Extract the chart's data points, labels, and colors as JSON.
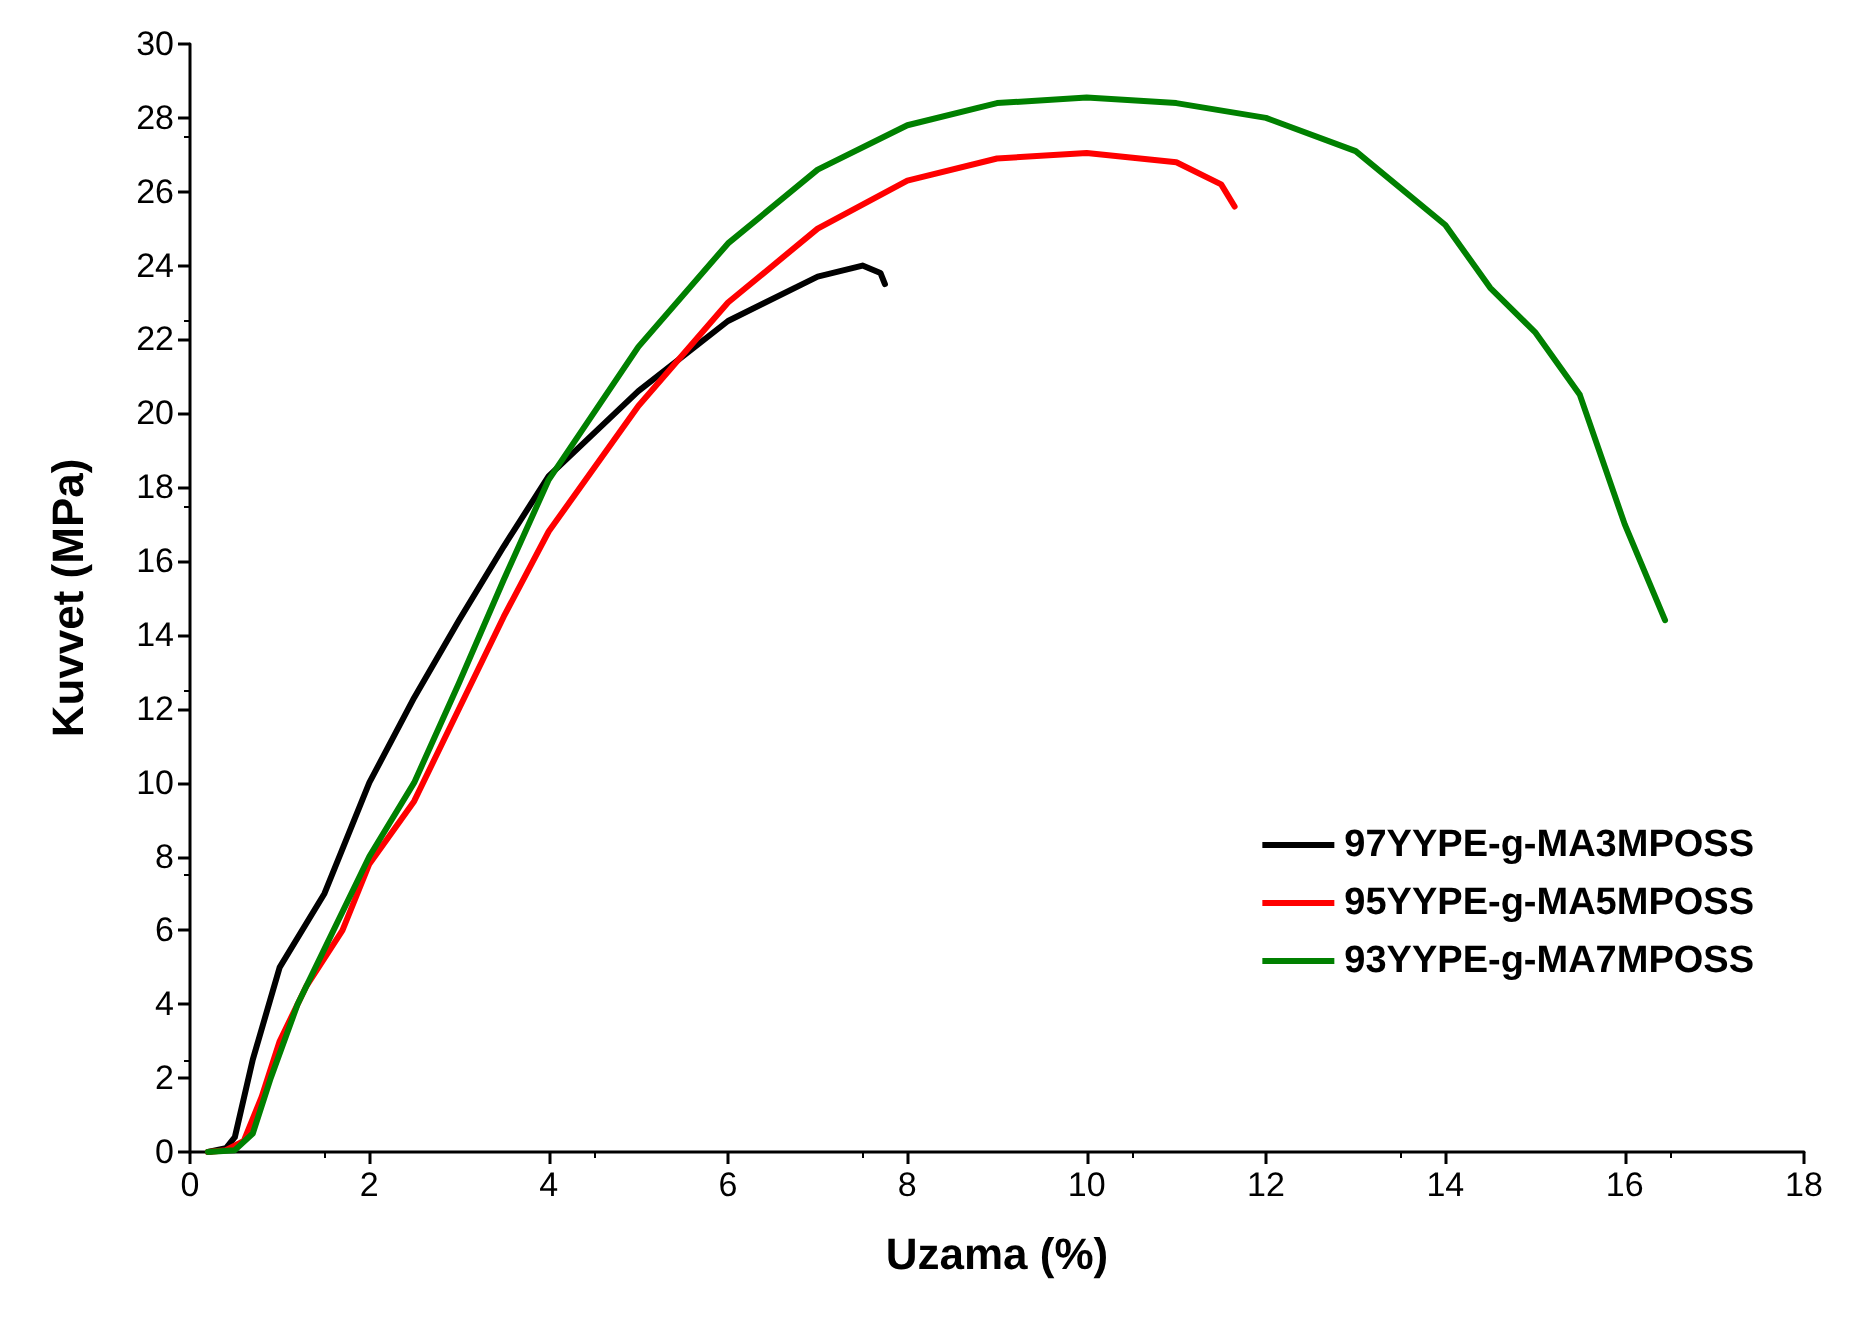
{
  "chart_data": {
    "type": "line",
    "xlabel": "Uzama (%)",
    "ylabel": "Kuvvet (MPa)",
    "xlim": [
      0,
      18
    ],
    "xticks": [
      0,
      2,
      4,
      6,
      8,
      10,
      12,
      14,
      16,
      18
    ],
    "ylim": [
      0,
      30
    ],
    "yticks": [
      0,
      2,
      4,
      6,
      8,
      10,
      12,
      14,
      16,
      18,
      20,
      22,
      24,
      26,
      28,
      30
    ],
    "grid": false,
    "legend": "right",
    "marker": "none",
    "line_style": "solid",
    "series": [
      {
        "name": "97YYPE-g-MA3MPOSS",
        "color": "#000000",
        "x": [
          0.2,
          0.4,
          0.5,
          0.7,
          1,
          1.5,
          2,
          2.5,
          3,
          3.5,
          4,
          5,
          6,
          7,
          7.5,
          7.7,
          7.75
        ],
        "values": [
          0,
          0.1,
          0.4,
          2.5,
          5,
          7,
          10,
          12.3,
          14.4,
          16.4,
          18.3,
          20.6,
          22.5,
          23.7,
          24,
          23.8,
          23.5
        ]
      },
      {
        "name": "95YYPE-g-MA5MPOSS",
        "color": "#ff0000",
        "x": [
          0.2,
          0.4,
          0.6,
          0.8,
          1,
          1.3,
          1.7,
          2,
          2.5,
          3,
          3.5,
          4,
          5,
          6,
          7,
          8,
          9,
          10,
          11,
          11.5,
          11.65
        ],
        "values": [
          0,
          0.05,
          0.3,
          1.5,
          3,
          4.5,
          6,
          7.8,
          9.5,
          12,
          14.5,
          16.8,
          20.2,
          23,
          25,
          26.3,
          26.9,
          27.05,
          26.8,
          26.2,
          25.6
        ]
      },
      {
        "name": "93YYPE-g-MA7MPOSS",
        "color": "#008000",
        "x": [
          0.2,
          0.5,
          0.7,
          0.9,
          1.2,
          1.5,
          2,
          2.5,
          3,
          3.5,
          4,
          5,
          6,
          7,
          8,
          9,
          10,
          11,
          12,
          13,
          14,
          14.5,
          15,
          15.5,
          16,
          16.45
        ],
        "values": [
          0,
          0.05,
          0.5,
          2,
          4,
          5.5,
          8,
          10,
          12.7,
          15.5,
          18.2,
          21.8,
          24.6,
          26.6,
          27.8,
          28.4,
          28.55,
          28.4,
          28,
          27.1,
          25.1,
          23.4,
          22.2,
          20.5,
          17,
          14.4
        ]
      }
    ]
  }
}
